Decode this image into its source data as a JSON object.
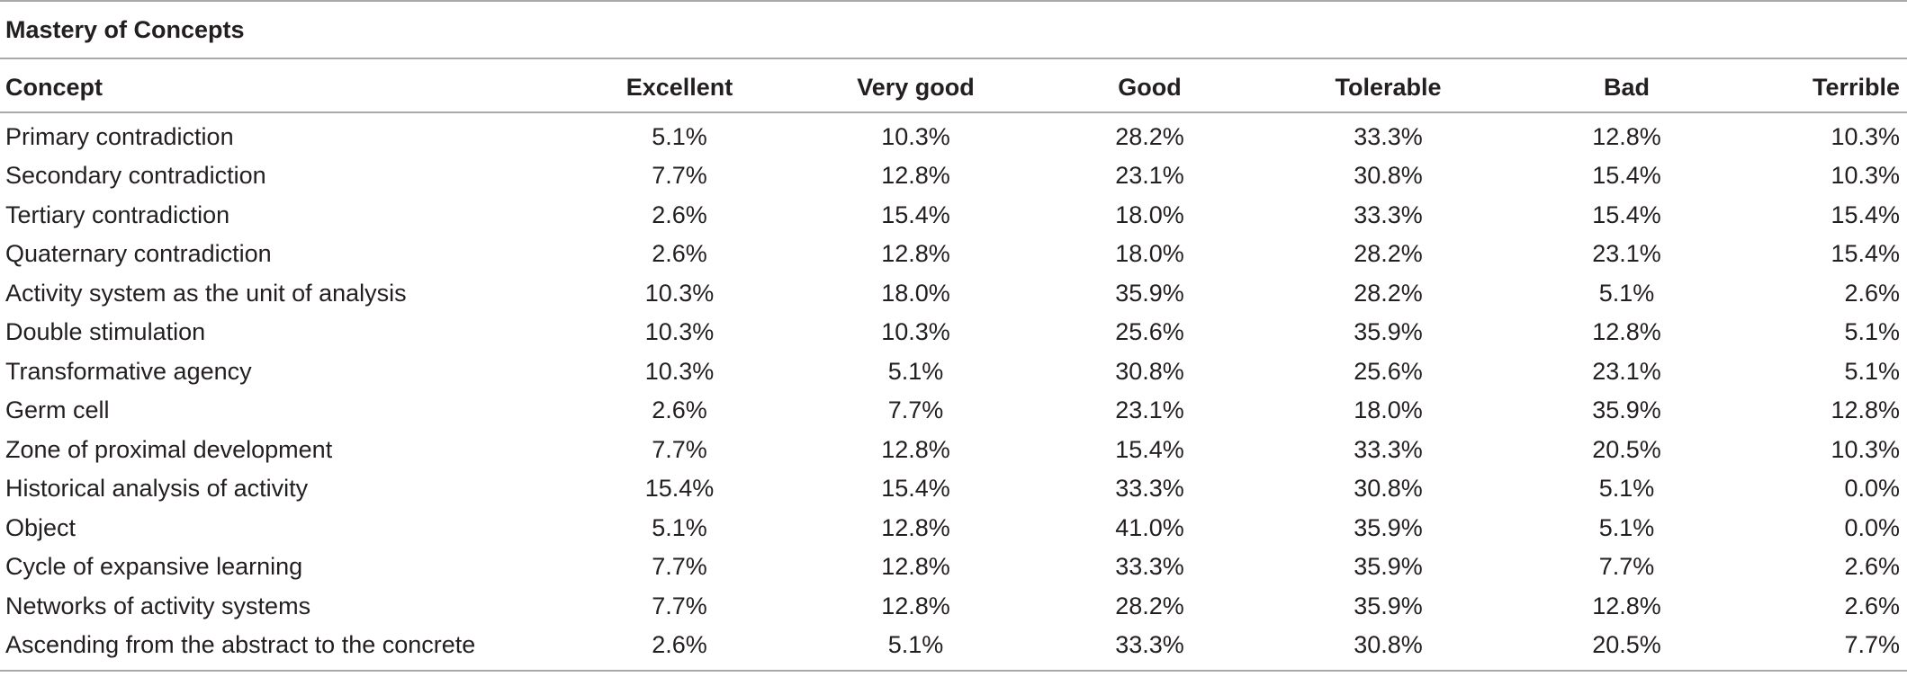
{
  "table": {
    "title": "Mastery of Concepts",
    "columns": [
      "Concept",
      "Excellent",
      "Very good",
      "Good",
      "Tolerable",
      "Bad",
      "Terrible"
    ],
    "rows": [
      {
        "concept": "Primary contradiction",
        "values": [
          "5.1%",
          "10.3%",
          "28.2%",
          "33.3%",
          "12.8%",
          "10.3%"
        ]
      },
      {
        "concept": "Secondary contradiction",
        "values": [
          "7.7%",
          "12.8%",
          "23.1%",
          "30.8%",
          "15.4%",
          "10.3%"
        ]
      },
      {
        "concept": "Tertiary contradiction",
        "values": [
          "2.6%",
          "15.4%",
          "18.0%",
          "33.3%",
          "15.4%",
          "15.4%"
        ]
      },
      {
        "concept": "Quaternary contradiction",
        "values": [
          "2.6%",
          "12.8%",
          "18.0%",
          "28.2%",
          "23.1%",
          "15.4%"
        ]
      },
      {
        "concept": "Activity system as the unit of analysis",
        "values": [
          "10.3%",
          "18.0%",
          "35.9%",
          "28.2%",
          "5.1%",
          "2.6%"
        ]
      },
      {
        "concept": "Double stimulation",
        "values": [
          "10.3%",
          "10.3%",
          "25.6%",
          "35.9%",
          "12.8%",
          "5.1%"
        ]
      },
      {
        "concept": "Transformative agency",
        "values": [
          "10.3%",
          "5.1%",
          "30.8%",
          "25.6%",
          "23.1%",
          "5.1%"
        ]
      },
      {
        "concept": "Germ cell",
        "values": [
          "2.6%",
          "7.7%",
          "23.1%",
          "18.0%",
          "35.9%",
          "12.8%"
        ]
      },
      {
        "concept": "Zone of proximal development",
        "values": [
          "7.7%",
          "12.8%",
          "15.4%",
          "33.3%",
          "20.5%",
          "10.3%"
        ]
      },
      {
        "concept": "Historical analysis of activity",
        "values": [
          "15.4%",
          "15.4%",
          "33.3%",
          "30.8%",
          "5.1%",
          "0.0%"
        ]
      },
      {
        "concept": "Object",
        "values": [
          "5.1%",
          "12.8%",
          "41.0%",
          "35.9%",
          "5.1%",
          "0.0%"
        ]
      },
      {
        "concept": "Cycle of expansive learning",
        "values": [
          "7.7%",
          "12.8%",
          "33.3%",
          "35.9%",
          "7.7%",
          "2.6%"
        ]
      },
      {
        "concept": "Networks of activity systems",
        "values": [
          "7.7%",
          "12.8%",
          "28.2%",
          "35.9%",
          "12.8%",
          "2.6%"
        ]
      },
      {
        "concept": "Ascending from the abstract to the concrete",
        "values": [
          "2.6%",
          "5.1%",
          "33.3%",
          "30.8%",
          "20.5%",
          "7.7%"
        ]
      }
    ]
  }
}
